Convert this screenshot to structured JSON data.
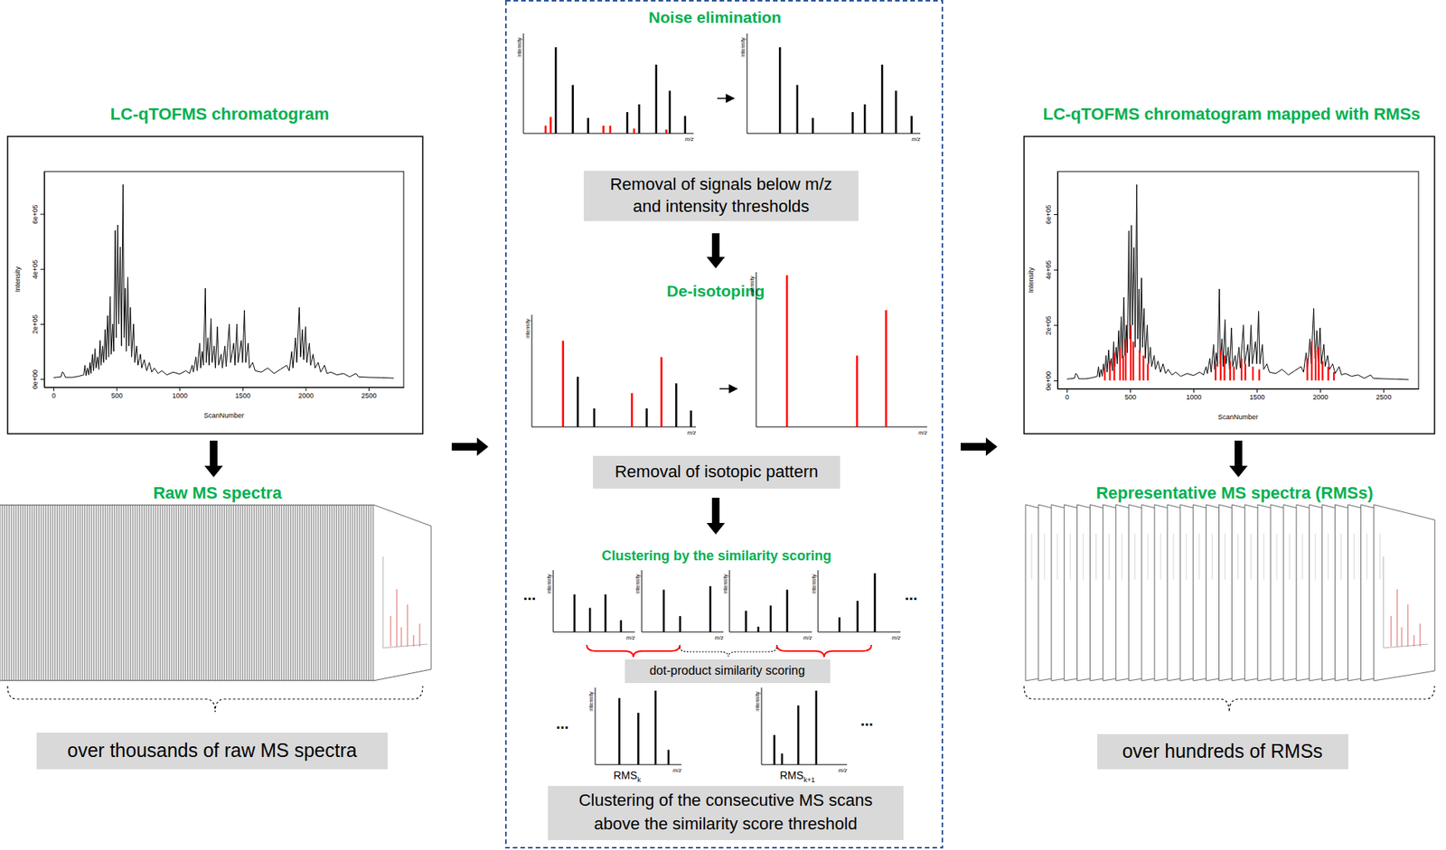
{
  "chart_data": [
    {
      "type": "line",
      "title": "LC-qTOFMS chromatogram",
      "x_label": "ScanNumber",
      "y_label": "Intensity",
      "xlim": [
        -73,
        2778
      ],
      "ylim": [
        -30000,
        754000
      ],
      "xticks": [
        0,
        500,
        1000,
        1500,
        2000,
        2500
      ],
      "yticks": [
        {
          "value": 0,
          "label": "0e+00"
        },
        {
          "value": 200000,
          "label": "2e+05"
        },
        {
          "value": 400000,
          "label": "4e+05"
        },
        {
          "value": 600000,
          "label": "6e+05"
        }
      ],
      "series": [
        {
          "type": "line",
          "color": "#000000",
          "x": [
            1,
            60,
            70,
            80,
            95,
            150,
            200,
            240,
            250,
            258,
            270,
            280,
            290,
            298,
            310,
            318,
            330,
            338,
            350,
            360,
            370,
            378,
            390,
            398,
            410,
            418,
            430,
            438,
            450,
            458,
            470,
            478,
            490,
            498,
            510,
            518,
            530,
            540,
            552,
            560,
            570,
            578,
            590,
            598,
            610,
            620,
            635,
            645,
            660,
            670,
            690,
            700,
            720,
            740,
            760,
            780,
            800,
            830,
            860,
            900,
            950,
            1000,
            1050,
            1080,
            1100,
            1110,
            1130,
            1140,
            1160,
            1168,
            1180,
            1190,
            1205,
            1212,
            1225,
            1235,
            1250,
            1258,
            1275,
            1285,
            1300,
            1310,
            1330,
            1340,
            1360,
            1370,
            1395,
            1405,
            1430,
            1440,
            1455,
            1465,
            1490,
            1500,
            1515,
            1525,
            1545,
            1555,
            1580,
            1600,
            1650,
            1700,
            1750,
            1800,
            1850,
            1870,
            1890,
            1900,
            1920,
            1930,
            1950,
            1960,
            1975,
            1985,
            2000,
            2010,
            2030,
            2040,
            2060,
            2075,
            2100,
            2120,
            2150,
            2170,
            2200,
            2250,
            2300,
            2350,
            2400,
            2420,
            2500,
            2600,
            2700
          ],
          "values": [
            5000,
            8000,
            25000,
            22000,
            6000,
            6000,
            10000,
            15000,
            50000,
            12000,
            40000,
            15000,
            60000,
            20000,
            90000,
            30000,
            110000,
            40000,
            80000,
            35000,
            140000,
            50000,
            120000,
            60000,
            180000,
            70000,
            230000,
            80000,
            300000,
            90000,
            200000,
            100000,
            540000,
            150000,
            560000,
            200000,
            480000,
            120000,
            707000,
            150000,
            330000,
            100000,
            370000,
            120000,
            260000,
            80000,
            200000,
            60000,
            120000,
            50000,
            90000,
            40000,
            70000,
            30000,
            60000,
            25000,
            40000,
            20000,
            30000,
            15000,
            25000,
            18000,
            30000,
            20000,
            50000,
            25000,
            80000,
            30000,
            130000,
            40000,
            100000,
            50000,
            330000,
            60000,
            150000,
            50000,
            220000,
            60000,
            120000,
            40000,
            190000,
            50000,
            90000,
            40000,
            120000,
            45000,
            200000,
            60000,
            130000,
            50000,
            200000,
            60000,
            140000,
            60000,
            250000,
            60000,
            130000,
            40000,
            60000,
            30000,
            25000,
            40000,
            20000,
            35000,
            50000,
            30000,
            100000,
            40000,
            150000,
            60000,
            260000,
            80000,
            180000,
            70000,
            190000,
            60000,
            130000,
            50000,
            90000,
            40000,
            60000,
            25000,
            50000,
            20000,
            25000,
            15000,
            20000,
            8000,
            20000,
            8000,
            6000,
            5000,
            3000
          ]
        }
      ]
    },
    {
      "type": "line",
      "title": "LC-qTOFMS chromatogram mapped with RMSs",
      "x_label": "ScanNumber",
      "y_label": "Intensity",
      "xlim": [
        -73,
        2778
      ],
      "ylim": [
        -30000,
        754000
      ],
      "xticks": [
        0,
        500,
        1000,
        1500,
        2000,
        2500
      ],
      "yticks": [
        {
          "value": 0,
          "label": "0e+00"
        },
        {
          "value": 200000,
          "label": "2e+05"
        },
        {
          "value": 400000,
          "label": "4e+05"
        },
        {
          "value": 600000,
          "label": "6e+05"
        }
      ],
      "series": [
        {
          "type": "line",
          "color": "#000000",
          "x": [
            1,
            60,
            70,
            80,
            95,
            150,
            200,
            240,
            250,
            258,
            270,
            280,
            290,
            298,
            310,
            318,
            330,
            338,
            350,
            360,
            370,
            378,
            390,
            398,
            410,
            418,
            430,
            438,
            450,
            458,
            470,
            478,
            490,
            498,
            510,
            518,
            530,
            540,
            552,
            560,
            570,
            578,
            590,
            598,
            610,
            620,
            635,
            645,
            660,
            670,
            690,
            700,
            720,
            740,
            760,
            780,
            800,
            830,
            860,
            900,
            950,
            1000,
            1050,
            1080,
            1100,
            1110,
            1130,
            1140,
            1160,
            1168,
            1180,
            1190,
            1205,
            1212,
            1225,
            1235,
            1250,
            1258,
            1275,
            1285,
            1300,
            1310,
            1330,
            1340,
            1360,
            1370,
            1395,
            1405,
            1430,
            1440,
            1455,
            1465,
            1490,
            1500,
            1515,
            1525,
            1545,
            1555,
            1580,
            1600,
            1650,
            1700,
            1750,
            1800,
            1850,
            1870,
            1890,
            1900,
            1920,
            1930,
            1950,
            1960,
            1975,
            1985,
            2000,
            2010,
            2030,
            2040,
            2060,
            2075,
            2100,
            2120,
            2150,
            2170,
            2200,
            2250,
            2300,
            2350,
            2400,
            2420,
            2500,
            2600,
            2700
          ],
          "values": [
            5000,
            8000,
            25000,
            22000,
            6000,
            6000,
            10000,
            15000,
            50000,
            12000,
            40000,
            15000,
            60000,
            20000,
            90000,
            30000,
            110000,
            40000,
            80000,
            35000,
            140000,
            50000,
            120000,
            60000,
            180000,
            70000,
            230000,
            80000,
            300000,
            90000,
            200000,
            100000,
            540000,
            150000,
            560000,
            200000,
            480000,
            120000,
            707000,
            150000,
            330000,
            100000,
            370000,
            120000,
            260000,
            80000,
            200000,
            60000,
            120000,
            50000,
            90000,
            40000,
            70000,
            30000,
            60000,
            25000,
            40000,
            20000,
            30000,
            15000,
            25000,
            18000,
            30000,
            20000,
            50000,
            25000,
            80000,
            30000,
            130000,
            40000,
            100000,
            50000,
            330000,
            60000,
            150000,
            50000,
            220000,
            60000,
            120000,
            40000,
            190000,
            50000,
            90000,
            40000,
            120000,
            45000,
            200000,
            60000,
            130000,
            50000,
            200000,
            60000,
            140000,
            60000,
            250000,
            60000,
            130000,
            40000,
            60000,
            30000,
            25000,
            40000,
            20000,
            35000,
            50000,
            30000,
            100000,
            40000,
            150000,
            60000,
            260000,
            80000,
            180000,
            70000,
            190000,
            60000,
            130000,
            50000,
            90000,
            40000,
            60000,
            25000,
            50000,
            20000,
            25000,
            15000,
            20000,
            8000,
            20000,
            8000,
            6000,
            5000,
            3000
          ]
        },
        {
          "type": "bar",
          "color": "#ff0000",
          "x": [
            300,
            340,
            375,
            420,
            445,
            465,
            505,
            525,
            575,
            605,
            640,
            1175,
            1215,
            1245,
            1290,
            1320,
            1380,
            1410,
            1470,
            1520,
            1900,
            1935,
            1965,
            1990,
            2020,
            2065,
            2110
          ],
          "values": [
            40000,
            70000,
            100000,
            120000,
            90000,
            150000,
            200000,
            140000,
            110000,
            90000,
            60000,
            60000,
            110000,
            90000,
            70000,
            50000,
            80000,
            60000,
            50000,
            40000,
            80000,
            140000,
            110000,
            120000,
            70000,
            50000,
            30000
          ]
        }
      ]
    }
  ],
  "diagram": {
    "raw": {
      "title": "Raw MS spectra",
      "caption": "over thousands of raw MS spectra"
    },
    "rms": {
      "title": "Representative MS spectra (RMSs)",
      "caption": "over hundreds of RMSs"
    },
    "process": {
      "mini_axes": {
        "y_label": "intensity",
        "x_label": "m/z",
        "xlim": [
          0,
          100
        ],
        "ylim": [
          0,
          100
        ]
      },
      "ellipsis": "...",
      "noise": {
        "title": "Noise elimination",
        "before": {
          "mz": [
            13,
            16,
            19,
            29,
            38,
            47,
            51,
            61,
            65,
            68,
            78,
            84,
            86,
            95
          ],
          "intensity": [
            8,
            17,
            89,
            50,
            16,
            8,
            8,
            22,
            5,
            30,
            71,
            4,
            44,
            18
          ],
          "colors": [
            "#ff0000",
            "#ff0000",
            "#000000",
            "#000000",
            "#000000",
            "#ff0000",
            "#ff0000",
            "#000000",
            "#ff0000",
            "#000000",
            "#000000",
            "#ff0000",
            "#000000",
            "#000000"
          ]
        },
        "after": {
          "mz": [
            19,
            29,
            38,
            61,
            68,
            78,
            86,
            95
          ],
          "intensity": [
            89,
            50,
            16,
            22,
            30,
            71,
            44,
            18
          ],
          "colors": [
            "#000000",
            "#000000",
            "#000000",
            "#000000",
            "#000000",
            "#000000",
            "#000000",
            "#000000"
          ]
        },
        "caption": [
          "Removal of signals below m/z",
          "and intensity thresholds"
        ]
      },
      "deisotoping": {
        "title": "De-isotoping",
        "before": {
          "mz": [
            19,
            28,
            38,
            61,
            70,
            79,
            88,
            97
          ],
          "intensity": [
            79,
            46,
            17,
            31,
            17,
            64,
            40,
            15
          ],
          "colors": [
            "#ff0000",
            "#000000",
            "#000000",
            "#ff0000",
            "#000000",
            "#ff0000",
            "#000000",
            "#000000"
          ]
        },
        "after": {
          "mz": [
            18,
            59,
            76
          ],
          "intensity": [
            100,
            47,
            77
          ],
          "colors": [
            "#ff0000",
            "#ff0000",
            "#ff0000"
          ]
        },
        "caption": [
          "Removal of isotopic pattern"
        ]
      },
      "clustering": {
        "title": "Clustering by the similarity scoring",
        "scans": [
          {
            "mz": [
              26,
              45,
              64,
              83
            ],
            "intensity": [
              64,
              41,
              64,
              20
            ],
            "color": "#000000"
          },
          {
            "mz": [
              27,
              47,
              84
            ],
            "intensity": [
              72,
              27,
              78
            ],
            "color": "#000000"
          },
          {
            "mz": [
              20,
              35,
              50,
              70
            ],
            "intensity": [
              36,
              9,
              45,
              72
            ],
            "color": "#000000"
          },
          {
            "mz": [
              26,
              48,
              69
            ],
            "intensity": [
              25,
              53,
              100
            ],
            "color": "#000000"
          }
        ],
        "scoring_label": "dot-product similarity scoring",
        "rms": [
          {
            "label": "RMS",
            "subscript": "k",
            "mz": [
              28,
              50,
              70,
              85
            ],
            "intensity": [
              90,
              70,
              100,
              20
            ],
            "color": "#000000"
          },
          {
            "label": "RMS",
            "subscript": "k+1",
            "mz": [
              15,
              24,
              43,
              64
            ],
            "intensity": [
              40,
              15,
              80,
              100
            ],
            "color": "#000000"
          }
        ],
        "caption": [
          "Clustering of the consecutive MS scans",
          "above the similarity score threshold"
        ]
      }
    }
  }
}
